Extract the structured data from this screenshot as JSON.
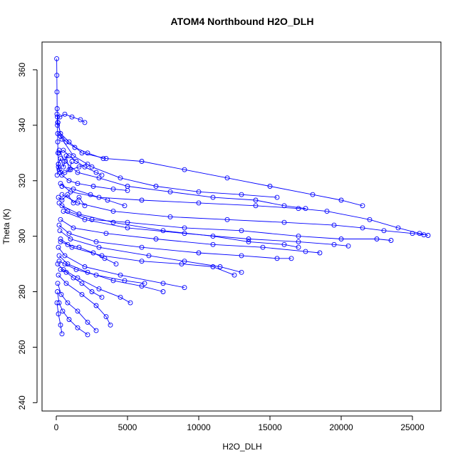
{
  "chart_data": {
    "type": "line",
    "title": "ATOM4 Northbound H2O_DLH",
    "xlabel": "H2O_DLH",
    "ylabel": "Theta (K)",
    "xlim": [
      -1000,
      27000
    ],
    "ylim": [
      237,
      370
    ],
    "xticks": [
      0,
      5000,
      10000,
      15000,
      20000,
      25000
    ],
    "yticks": [
      240,
      260,
      280,
      300,
      320,
      340,
      360
    ],
    "grid": false,
    "markers": "open-circle",
    "color": "#0000ff",
    "segments": [
      {
        "x": [
          30,
          40,
          50,
          60,
          80,
          100,
          120,
          150,
          200,
          300,
          600,
          1000,
          1600,
          2200
        ],
        "y": [
          364,
          358,
          352,
          346,
          340,
          334,
          330,
          326,
          324,
          323,
          323,
          324,
          325,
          326
        ]
      },
      {
        "x": [
          50,
          120,
          300,
          900,
          1800,
          3500,
          6000,
          9000,
          12000,
          15000,
          18000,
          20000,
          21500
        ],
        "y": [
          344,
          341,
          337,
          334,
          330,
          328,
          327,
          324,
          321,
          318,
          315,
          313,
          311
        ]
      },
      {
        "x": [
          200,
          600,
          1500,
          3000,
          5000,
          8000,
          11000,
          14000,
          16000,
          17500
        ],
        "y": [
          331,
          327,
          323,
          321,
          318,
          316,
          314,
          313,
          311,
          310
        ]
      },
      {
        "x": [
          100,
          400,
          1200,
          2500,
          4500,
          7000,
          10000,
          13000,
          15500
        ],
        "y": [
          341,
          335,
          329,
          325,
          321,
          318,
          316,
          315,
          314
        ]
      },
      {
        "x": [
          300,
          1000,
          3000,
          6000,
          10000,
          14000,
          17000,
          19000,
          22000,
          24000,
          25500,
          26100
        ],
        "y": [
          319,
          316,
          314,
          313,
          312,
          311,
          310,
          309,
          306,
          303,
          301,
          300.3
        ]
      },
      {
        "x": [
          400,
          1500,
          4000,
          8000,
          12000,
          16000,
          19500,
          21500,
          23000,
          25000,
          25800
        ],
        "y": [
          315,
          312,
          309,
          307,
          306,
          305,
          304,
          303,
          302,
          301,
          300.5
        ]
      },
      {
        "x": [
          200,
          800,
          2500,
          5000,
          9000,
          13000,
          17000,
          20000,
          22500,
          23500
        ],
        "y": [
          312,
          309,
          306,
          305,
          303,
          302,
          300,
          299,
          299,
          298.5
        ]
      },
      {
        "x": [
          500,
          2000,
          5000,
          9000,
          13500,
          17000,
          19500,
          20500
        ],
        "y": [
          309,
          306,
          303,
          301,
          299,
          298,
          297,
          296.5
        ]
      },
      {
        "x": [
          300,
          1200,
          3500,
          7000,
          11000,
          14500,
          17500,
          18500
        ],
        "y": [
          306,
          303,
          301,
          299,
          297,
          296,
          294.5,
          294
        ]
      },
      {
        "x": [
          200,
          900,
          2800,
          6000,
          10000,
          13000,
          15500,
          16500
        ],
        "y": [
          304,
          301,
          298,
          296,
          294,
          293,
          292,
          292
        ]
      },
      {
        "x": [
          400,
          1600,
          4000,
          7500,
          11000,
          13500,
          16000,
          17000
        ],
        "y": [
          311,
          308,
          305,
          302,
          300,
          298,
          297,
          296
        ]
      },
      {
        "x": [
          250,
          1000,
          3000,
          6500,
          9000,
          11500,
          13000
        ],
        "y": [
          302,
          299,
          296,
          293,
          291,
          289,
          287
        ]
      },
      {
        "x": [
          300,
          1100,
          3200,
          6000,
          8800,
          11000,
          12500
        ],
        "y": [
          299,
          296,
          293,
          291,
          290,
          289,
          286
        ]
      },
      {
        "x": [
          150,
          600,
          2000,
          4500,
          7500,
          9000
        ],
        "y": [
          296,
          293,
          289,
          286,
          283,
          281.5
        ]
      },
      {
        "x": [
          200,
          800,
          2200,
          4000,
          6000,
          7500
        ],
        "y": [
          293,
          290,
          287,
          284,
          282,
          280
        ]
      },
      {
        "x": [
          100,
          500,
          1500,
          3000,
          4500,
          5200
        ],
        "y": [
          290,
          288,
          285,
          281,
          278,
          276
        ]
      },
      {
        "x": [
          150,
          700,
          1800,
          2800,
          3500,
          3800
        ],
        "y": [
          286,
          283,
          279,
          275,
          271,
          268
        ]
      },
      {
        "x": [
          100,
          350,
          800,
          1500,
          2200,
          2800
        ],
        "y": [
          283,
          279,
          276,
          273,
          269,
          266
        ]
      },
      {
        "x": [
          80,
          200,
          450,
          900,
          1500,
          2200
        ],
        "y": [
          280,
          276,
          273,
          270,
          267,
          264.5
        ]
      },
      {
        "x": [
          50,
          150,
          300,
          400
        ],
        "y": [
          276,
          272,
          268,
          264.8
        ]
      },
      {
        "x": [
          300,
          700,
          1200,
          1800,
          2500,
          3200
        ],
        "y": [
          288,
          287,
          285,
          283,
          280,
          278
        ]
      },
      {
        "x": [
          200,
          600,
          1400,
          2800,
          4800,
          6200
        ],
        "y": [
          291,
          290,
          288,
          286,
          284,
          283
        ]
      },
      {
        "x": [
          150,
          400,
          900,
          1500,
          2600,
          4000,
          5000
        ],
        "y": [
          325,
          322,
          320,
          319,
          318,
          317,
          316.5
        ]
      },
      {
        "x": [
          100,
          300,
          700,
          1300,
          2200,
          3300
        ],
        "y": [
          337,
          336,
          334,
          332,
          330,
          328
        ]
      },
      {
        "x": [
          80,
          250,
          600,
          1100,
          1700,
          2000
        ],
        "y": [
          343,
          343,
          344,
          343,
          342,
          341
        ]
      },
      {
        "x": [
          200,
          500,
          900,
          1400,
          2000,
          2800,
          3200
        ],
        "y": [
          330,
          331,
          329,
          327,
          325,
          323,
          322
        ]
      },
      {
        "x": [
          150,
          400,
          800,
          1200,
          1600,
          2000
        ],
        "y": [
          314,
          313,
          315,
          312,
          314,
          311
        ]
      },
      {
        "x": [
          300,
          800,
          1600,
          2600,
          3400,
          4200
        ],
        "y": [
          298,
          297,
          296,
          294,
          292,
          290
        ]
      },
      {
        "x": [
          400,
          1200,
          2400,
          3600,
          4800
        ],
        "y": [
          318,
          317,
          315,
          313,
          311
        ]
      },
      {
        "x": [
          60,
          150,
          300,
          500,
          700,
          900,
          1100
        ],
        "y": [
          322,
          326,
          328,
          325,
          329,
          324,
          327
        ]
      }
    ]
  }
}
